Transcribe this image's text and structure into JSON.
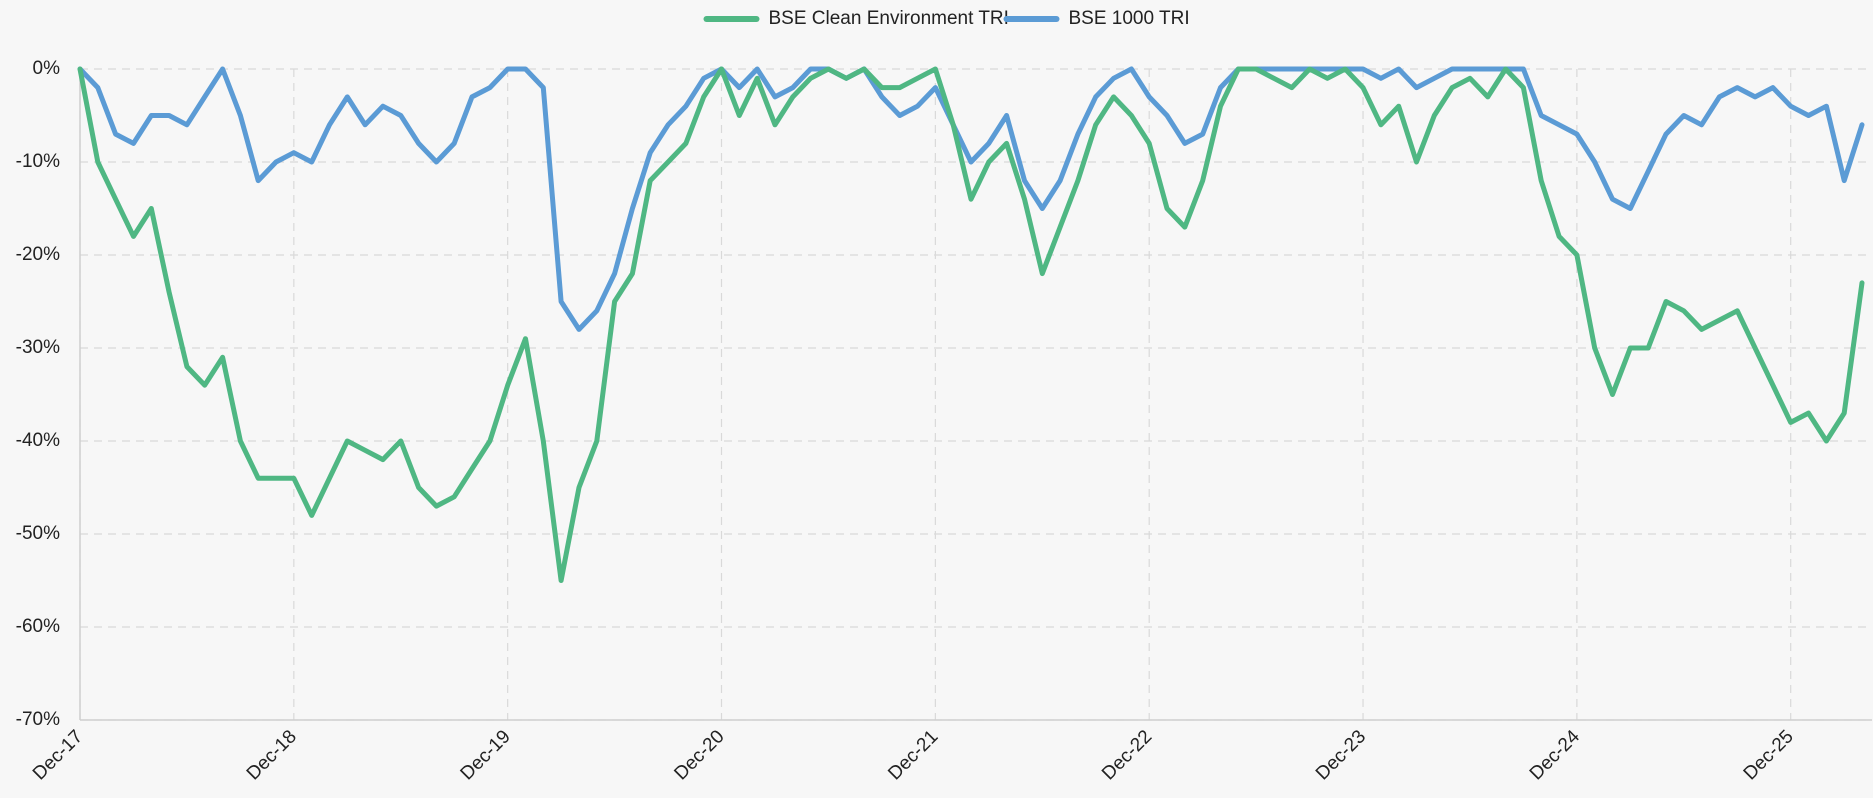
{
  "chart_data": {
    "type": "line",
    "categories": [
      "Dec-17",
      null,
      null,
      null,
      null,
      null,
      null,
      null,
      null,
      null,
      null,
      null,
      "Dec-18",
      null,
      null,
      null,
      null,
      null,
      null,
      null,
      null,
      null,
      null,
      null,
      "Dec-19",
      null,
      null,
      null,
      null,
      null,
      null,
      null,
      null,
      null,
      null,
      null,
      "Dec-20",
      null,
      null,
      null,
      null,
      null,
      null,
      null,
      null,
      null,
      null,
      null,
      "Dec-21",
      null,
      null,
      null,
      null,
      null,
      null,
      null,
      null,
      null,
      null,
      null,
      "Dec-22",
      null,
      null,
      null,
      null,
      null,
      null,
      null,
      null,
      null,
      null,
      null,
      "Dec-23",
      null,
      null,
      null,
      null,
      null,
      null,
      null,
      null,
      null,
      null,
      null,
      "Dec-24",
      null,
      null,
      null,
      null,
      null,
      null,
      null,
      null,
      null,
      null,
      null,
      "Dec-25",
      null,
      null,
      null,
      null
    ],
    "series": [
      {
        "name": "BSE Clean Environment TRI",
        "color": "#4fb783",
        "values": [
          0,
          -10,
          -14,
          -18,
          -15,
          -24,
          -32,
          -34,
          -31,
          -40,
          -44,
          -44,
          -44,
          -48,
          -44,
          -40,
          -41,
          -42,
          -40,
          -45,
          -47,
          -46,
          -43,
          -40,
          -34,
          -29,
          -40,
          -55,
          -45,
          -40,
          -25,
          -22,
          -12,
          -10,
          -8,
          -3,
          0,
          -5,
          -1,
          -6,
          -3,
          -1,
          0,
          -1,
          0,
          -2,
          -2,
          -1,
          0,
          -6,
          -14,
          -10,
          -8,
          -14,
          -22,
          -17,
          -12,
          -6,
          -3,
          -5,
          -8,
          -15,
          -17,
          -12,
          -4,
          0,
          0,
          -1,
          -2,
          0,
          -1,
          0,
          -2,
          -6,
          -4,
          -10,
          -5,
          -2,
          -1,
          -3,
          0,
          -2,
          -12,
          -18,
          -20,
          -30,
          -35,
          -30,
          -30,
          -25,
          -26,
          -28,
          -27,
          -26,
          -30,
          -34,
          -38,
          -37,
          -40,
          -37,
          -23
        ]
      },
      {
        "name": "BSE 1000 TRI",
        "color": "#5b9bd5",
        "values": [
          0,
          -2,
          -7,
          -8,
          -5,
          -5,
          -6,
          -3,
          0,
          -5,
          -12,
          -10,
          -9,
          -10,
          -6,
          -3,
          -6,
          -4,
          -5,
          -8,
          -10,
          -8,
          -3,
          -2,
          0,
          0,
          -2,
          -25,
          -28,
          -26,
          -22,
          -15,
          -9,
          -6,
          -4,
          -1,
          0,
          -2,
          0,
          -3,
          -2,
          0,
          0,
          -1,
          0,
          -3,
          -5,
          -4,
          -2,
          -6,
          -10,
          -8,
          -5,
          -12,
          -15,
          -12,
          -7,
          -3,
          -1,
          0,
          -3,
          -5,
          -8,
          -7,
          -2,
          0,
          0,
          0,
          0,
          0,
          0,
          0,
          0,
          -1,
          0,
          -2,
          -1,
          0,
          0,
          0,
          0,
          0,
          -5,
          -6,
          -7,
          -10,
          -14,
          -15,
          -11,
          -7,
          -5,
          -6,
          -3,
          -2,
          -3,
          -2,
          -4,
          -5,
          -4,
          -12,
          -6
        ]
      }
    ],
    "ylim": [
      -70,
      0
    ],
    "yticks": [
      {
        "value": 0,
        "label": "0%"
      },
      {
        "value": -10,
        "label": "-10%"
      },
      {
        "value": -20,
        "label": "-20%"
      },
      {
        "value": -30,
        "label": "-30%"
      },
      {
        "value": -40,
        "label": "-40%"
      },
      {
        "value": -50,
        "label": "-50%"
      },
      {
        "value": -60,
        "label": "-60%"
      },
      {
        "value": -70,
        "label": "-70%"
      }
    ],
    "grid": true,
    "legend": "top"
  }
}
